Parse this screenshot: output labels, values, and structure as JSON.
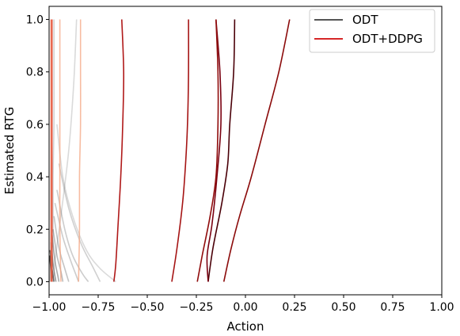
{
  "chart_data": {
    "type": "line",
    "title": "",
    "xlabel": "Action",
    "ylabel": "Estimated RTG",
    "xlim": [
      -1.0,
      1.0
    ],
    "ylim": [
      -0.05,
      1.05
    ],
    "xticks": [
      -1.0,
      -0.75,
      -0.5,
      -0.25,
      0.0,
      0.25,
      0.5,
      0.75,
      1.0
    ],
    "xtick_labels": [
      "−1.00",
      "−0.75",
      "−0.50",
      "−0.25",
      "0.00",
      "0.25",
      "0.50",
      "0.75",
      "1.00"
    ],
    "yticks": [
      0.0,
      0.2,
      0.4,
      0.6,
      0.8,
      1.0
    ],
    "ytick_labels": [
      "0.0",
      "0.2",
      "0.4",
      "0.6",
      "0.8",
      "1.0"
    ],
    "grid": false,
    "legend": {
      "placement": "top-right",
      "entries": [
        {
          "name": "ODT",
          "color": "#555555"
        },
        {
          "name": "ODT+DDPG",
          "color": "#d62728"
        }
      ]
    },
    "series": [
      {
        "group": "ODT+DDPG",
        "color": "#8b0a0a",
        "opacity": 1.0,
        "points": [
          [
            0.225,
            1.0
          ],
          [
            0.17,
            0.8
          ],
          [
            0.1,
            0.6
          ],
          [
            0.03,
            0.4
          ],
          [
            -0.03,
            0.25
          ],
          [
            -0.075,
            0.12
          ],
          [
            -0.11,
            0.0
          ]
        ]
      },
      {
        "group": "ODT+DDPG",
        "color": "#4a0008",
        "opacity": 1.0,
        "points": [
          [
            -0.055,
            1.0
          ],
          [
            -0.06,
            0.8
          ],
          [
            -0.08,
            0.6
          ],
          [
            -0.09,
            0.45
          ],
          [
            -0.12,
            0.3
          ],
          [
            -0.165,
            0.13
          ],
          [
            -0.19,
            0.0
          ]
        ]
      },
      {
        "group": "ODT+DDPG",
        "color": "#7a0010",
        "opacity": 1.0,
        "points": [
          [
            -0.15,
            1.0
          ],
          [
            -0.13,
            0.8
          ],
          [
            -0.125,
            0.6
          ],
          [
            -0.145,
            0.4
          ],
          [
            -0.17,
            0.22
          ],
          [
            -0.195,
            0.1
          ],
          [
            -0.19,
            0.0
          ]
        ]
      },
      {
        "group": "ODT+DDPG",
        "color": "#900c0c",
        "opacity": 1.0,
        "points": [
          [
            -0.15,
            1.0
          ],
          [
            -0.14,
            0.8
          ],
          [
            -0.14,
            0.6
          ],
          [
            -0.15,
            0.4
          ],
          [
            -0.18,
            0.25
          ],
          [
            -0.22,
            0.1
          ],
          [
            -0.245,
            0.0
          ]
        ]
      },
      {
        "group": "ODT+DDPG",
        "color": "#a51414",
        "opacity": 1.0,
        "points": [
          [
            -0.29,
            1.0
          ],
          [
            -0.29,
            0.8
          ],
          [
            -0.295,
            0.6
          ],
          [
            -0.305,
            0.45
          ],
          [
            -0.32,
            0.3
          ],
          [
            -0.35,
            0.12
          ],
          [
            -0.375,
            0.0
          ]
        ]
      },
      {
        "group": "ODT+DDPG",
        "color": "#b01919",
        "opacity": 1.0,
        "points": [
          [
            -0.63,
            1.0
          ],
          [
            -0.62,
            0.8
          ],
          [
            -0.625,
            0.6
          ],
          [
            -0.635,
            0.4
          ],
          [
            -0.65,
            0.2
          ],
          [
            -0.66,
            0.07
          ],
          [
            -0.67,
            0.0
          ]
        ]
      },
      {
        "group": "ODT+DDPG",
        "color": "#f4a582",
        "opacity": 0.75,
        "points": [
          [
            -0.84,
            1.0
          ],
          [
            -0.84,
            0.8
          ],
          [
            -0.84,
            0.6
          ],
          [
            -0.845,
            0.4
          ],
          [
            -0.845,
            0.2
          ],
          [
            -0.85,
            0.0
          ]
        ]
      },
      {
        "group": "ODT+DDPG",
        "color": "#f4a582",
        "opacity": 0.75,
        "points": [
          [
            -0.945,
            1.0
          ],
          [
            -0.945,
            0.8
          ],
          [
            -0.945,
            0.6
          ],
          [
            -0.945,
            0.4
          ],
          [
            -0.945,
            0.2
          ],
          [
            -0.94,
            0.0
          ]
        ]
      },
      {
        "group": "ODT+DDPG",
        "color": "#e34a33",
        "opacity": 0.9,
        "points": [
          [
            -0.985,
            1.0
          ],
          [
            -0.985,
            0.8
          ],
          [
            -0.985,
            0.6
          ],
          [
            -0.985,
            0.4
          ],
          [
            -0.985,
            0.2
          ],
          [
            -0.985,
            0.0
          ]
        ]
      },
      {
        "group": "ODT+DDPG",
        "color": "#ef6548",
        "opacity": 0.85,
        "points": [
          [
            -0.99,
            1.0
          ],
          [
            -0.99,
            0.8
          ],
          [
            -0.99,
            0.6
          ],
          [
            -0.99,
            0.4
          ],
          [
            -0.99,
            0.2
          ],
          [
            -0.99,
            0.0
          ]
        ]
      },
      {
        "group": "ODT",
        "color": "#555555",
        "opacity": 0.22,
        "points": [
          [
            -0.86,
            1.0
          ],
          [
            -0.875,
            0.75
          ],
          [
            -0.9,
            0.5
          ],
          [
            -0.94,
            0.25
          ],
          [
            -0.97,
            0.08
          ],
          [
            -0.98,
            0.0
          ]
        ]
      },
      {
        "group": "ODT",
        "color": "#555555",
        "opacity": 0.22,
        "points": [
          [
            -0.96,
            0.6
          ],
          [
            -0.93,
            0.4
          ],
          [
            -0.88,
            0.25
          ],
          [
            -0.81,
            0.12
          ],
          [
            -0.74,
            0.05
          ],
          [
            -0.66,
            0.0
          ]
        ]
      },
      {
        "group": "ODT",
        "color": "#555555",
        "opacity": 0.28,
        "points": [
          [
            -0.95,
            0.45
          ],
          [
            -0.9,
            0.28
          ],
          [
            -0.84,
            0.15
          ],
          [
            -0.78,
            0.06
          ],
          [
            -0.74,
            0.0
          ]
        ]
      },
      {
        "group": "ODT",
        "color": "#555555",
        "opacity": 0.3,
        "points": [
          [
            -0.96,
            0.35
          ],
          [
            -0.92,
            0.2
          ],
          [
            -0.88,
            0.1
          ],
          [
            -0.83,
            0.03
          ],
          [
            -0.8,
            0.0
          ]
        ]
      },
      {
        "group": "ODT",
        "color": "#555555",
        "opacity": 0.3,
        "points": [
          [
            -0.97,
            0.3
          ],
          [
            -0.93,
            0.17
          ],
          [
            -0.89,
            0.08
          ],
          [
            -0.86,
            0.02
          ],
          [
            -0.85,
            0.0
          ]
        ]
      },
      {
        "group": "ODT",
        "color": "#555555",
        "opacity": 0.35,
        "points": [
          [
            -0.975,
            0.25
          ],
          [
            -0.95,
            0.13
          ],
          [
            -0.92,
            0.05
          ],
          [
            -0.9,
            0.0
          ]
        ]
      },
      {
        "group": "ODT",
        "color": "#555555",
        "opacity": 0.4,
        "points": [
          [
            -0.98,
            0.2
          ],
          [
            -0.96,
            0.1
          ],
          [
            -0.94,
            0.04
          ],
          [
            -0.93,
            0.0
          ]
        ]
      },
      {
        "group": "ODT",
        "color": "#555555",
        "opacity": 0.5,
        "points": [
          [
            -0.985,
            0.18
          ],
          [
            -0.97,
            0.08
          ],
          [
            -0.955,
            0.02
          ],
          [
            -0.95,
            0.0
          ]
        ]
      },
      {
        "group": "ODT",
        "color": "#555555",
        "opacity": 0.6,
        "points": [
          [
            -0.99,
            0.15
          ],
          [
            -0.98,
            0.07
          ],
          [
            -0.97,
            0.02
          ],
          [
            -0.965,
            0.0
          ]
        ]
      },
      {
        "group": "ODT",
        "color": "#333333",
        "opacity": 0.7,
        "points": [
          [
            -0.995,
            0.12
          ],
          [
            -0.985,
            0.05
          ],
          [
            -0.975,
            0.0
          ]
        ]
      },
      {
        "group": "ODT",
        "color": "#222222",
        "opacity": 0.8,
        "points": [
          [
            -0.997,
            0.1
          ],
          [
            -0.99,
            0.04
          ],
          [
            -0.985,
            0.0
          ]
        ]
      },
      {
        "group": "ODT",
        "color": "#444444",
        "opacity": 0.3,
        "points": [
          [
            -0.985,
            1.0
          ],
          [
            -0.985,
            0.8
          ],
          [
            -0.985,
            0.6
          ],
          [
            -0.99,
            0.4
          ],
          [
            -0.99,
            0.2
          ],
          [
            -0.995,
            0.0
          ]
        ]
      },
      {
        "group": "ODT",
        "color": "#555555",
        "opacity": 0.25,
        "points": [
          [
            -0.975,
            1.0
          ],
          [
            -0.975,
            0.8
          ],
          [
            -0.975,
            0.6
          ],
          [
            -0.98,
            0.4
          ],
          [
            -0.98,
            0.2
          ],
          [
            -0.985,
            0.0
          ]
        ]
      }
    ]
  }
}
